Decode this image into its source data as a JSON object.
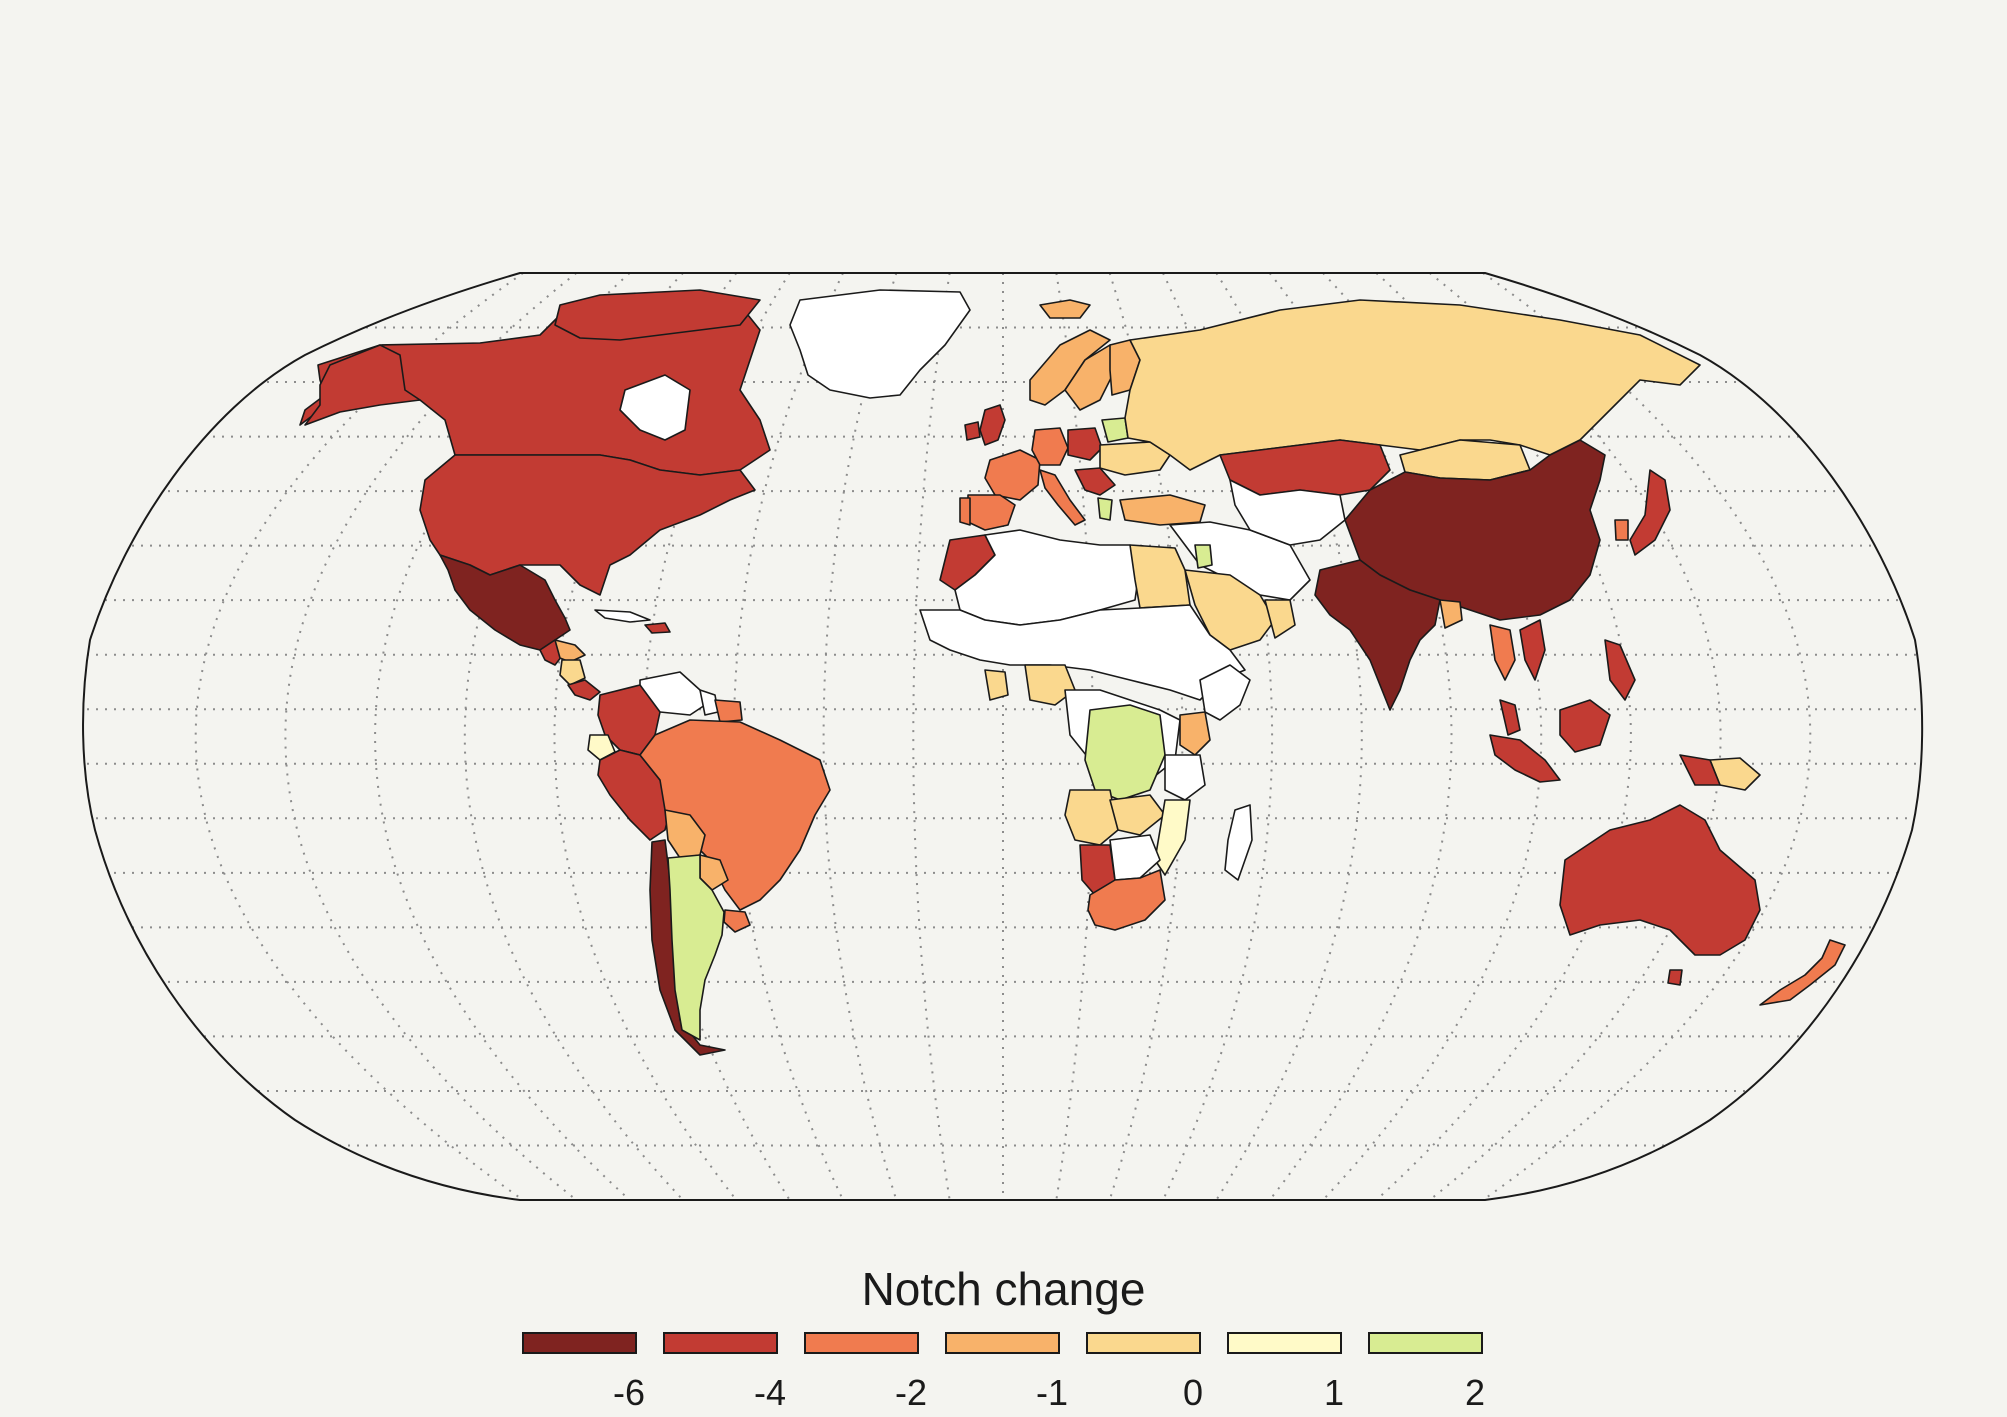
{
  "legend": {
    "title": "Notch change",
    "bins": [
      {
        "label": "-6",
        "value": -6,
        "color": "#7f2320"
      },
      {
        "label": "-4",
        "value": -4,
        "color": "#c23b33"
      },
      {
        "label": "-2",
        "value": -2,
        "color": "#f07b4f"
      },
      {
        "label": "-1",
        "value": -1,
        "color": "#f8b26a"
      },
      {
        "label": "0",
        "value": 0,
        "color": "#fad88e"
      },
      {
        "label": "1",
        "value": 1,
        "color": "#fffac8"
      },
      {
        "label": "2",
        "value": 2,
        "color": "#d8ec92"
      }
    ],
    "no_data_color": "#ffffff"
  },
  "map": {
    "projection": "robinson",
    "graticule": "dotted",
    "background": "#f4f4f0",
    "regions": [
      {
        "region": "Greenland",
        "value": null
      },
      {
        "region": "Canada",
        "value": -4
      },
      {
        "region": "United States",
        "value": -4
      },
      {
        "region": "Mexico",
        "value": -6
      },
      {
        "region": "Guatemala",
        "value": -4
      },
      {
        "region": "Honduras",
        "value": -1
      },
      {
        "region": "Nicaragua",
        "value": 0
      },
      {
        "region": "Costa Rica",
        "value": -4
      },
      {
        "region": "Cuba",
        "value": null
      },
      {
        "region": "Dominican Republic",
        "value": -4
      },
      {
        "region": "Colombia",
        "value": -4
      },
      {
        "region": "Venezuela",
        "value": null
      },
      {
        "region": "Guyana",
        "value": null
      },
      {
        "region": "Suriname",
        "value": -2
      },
      {
        "region": "Ecuador",
        "value": 1
      },
      {
        "region": "Peru",
        "value": -4
      },
      {
        "region": "Brazil",
        "value": -2
      },
      {
        "region": "Bolivia",
        "value": -1
      },
      {
        "region": "Paraguay",
        "value": -1
      },
      {
        "region": "Uruguay",
        "value": -2
      },
      {
        "region": "Chile",
        "value": -6
      },
      {
        "region": "Argentina",
        "value": 2
      },
      {
        "region": "Iceland",
        "value": -1
      },
      {
        "region": "United Kingdom",
        "value": -4
      },
      {
        "region": "Ireland",
        "value": -4
      },
      {
        "region": "Norway",
        "value": -1
      },
      {
        "region": "Sweden",
        "value": -1
      },
      {
        "region": "Finland",
        "value": -1
      },
      {
        "region": "France",
        "value": -2
      },
      {
        "region": "Spain",
        "value": -2
      },
      {
        "region": "Portugal",
        "value": -2
      },
      {
        "region": "Germany",
        "value": -2
      },
      {
        "region": "Poland",
        "value": -4
      },
      {
        "region": "Italy",
        "value": -2
      },
      {
        "region": "Ukraine",
        "value": 0
      },
      {
        "region": "Belarus",
        "value": 2
      },
      {
        "region": "Greece",
        "value": 2
      },
      {
        "region": "Turkey",
        "value": -1
      },
      {
        "region": "Russia",
        "value": 0
      },
      {
        "region": "Kazakhstan",
        "value": -4
      },
      {
        "region": "Mongolia",
        "value": 0
      },
      {
        "region": "China",
        "value": -6
      },
      {
        "region": "India",
        "value": -6
      },
      {
        "region": "Japan",
        "value": -4
      },
      {
        "region": "South Korea",
        "value": -2
      },
      {
        "region": "Vietnam",
        "value": -4
      },
      {
        "region": "Thailand",
        "value": -2
      },
      {
        "region": "Malaysia",
        "value": -4
      },
      {
        "region": "Indonesia",
        "value": -4
      },
      {
        "region": "Philippines",
        "value": -4
      },
      {
        "region": "Papua New Guinea",
        "value": 0
      },
      {
        "region": "Australia",
        "value": -4
      },
      {
        "region": "New Zealand",
        "value": -2
      },
      {
        "region": "Saudi Arabia",
        "value": 0
      },
      {
        "region": "Egypt",
        "value": 0
      },
      {
        "region": "Jordan",
        "value": 2
      },
      {
        "region": "Oman",
        "value": 0
      },
      {
        "region": "Morocco",
        "value": -4
      },
      {
        "region": "Nigeria",
        "value": 0
      },
      {
        "region": "Ghana",
        "value": 0
      },
      {
        "region": "DR Congo",
        "value": 2
      },
      {
        "region": "Angola",
        "value": 0
      },
      {
        "region": "Zambia",
        "value": 0
      },
      {
        "region": "Mozambique",
        "value": 1
      },
      {
        "region": "Namibia",
        "value": -4
      },
      {
        "region": "Botswana",
        "value": null
      },
      {
        "region": "South Africa",
        "value": -2
      },
      {
        "region": "Kenya",
        "value": -1
      },
      {
        "region": "Madagascar",
        "value": null
      }
    ]
  }
}
